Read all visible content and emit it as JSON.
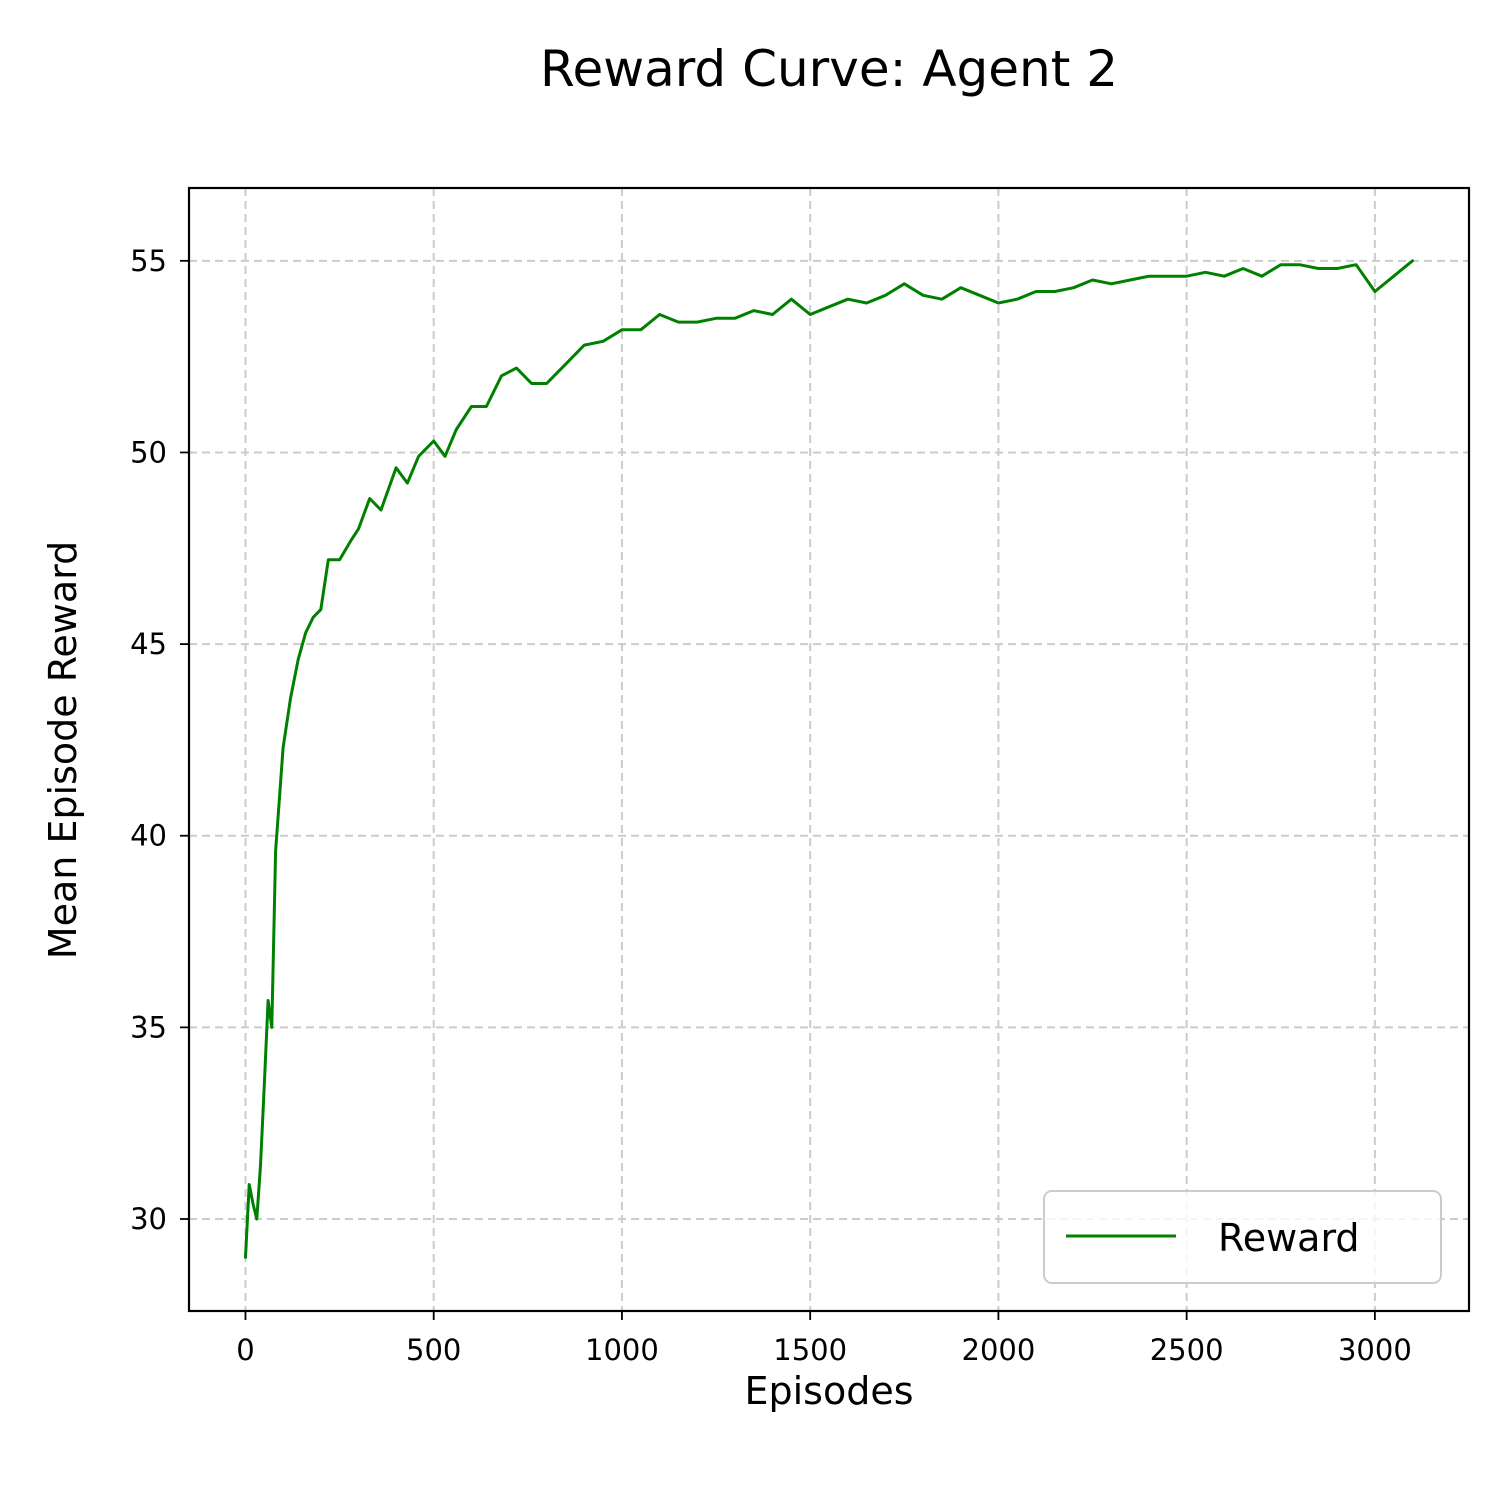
{
  "chart_data": {
    "type": "line",
    "title": "Reward Curve: Agent 2",
    "xlabel": "Episodes",
    "ylabel": "Mean Episode Reward",
    "xlim": [
      -150,
      3250
    ],
    "ylim": [
      27.6,
      56.9
    ],
    "xticks": [
      0,
      500,
      1000,
      1500,
      2000,
      2500,
      3000
    ],
    "yticks": [
      30,
      35,
      40,
      45,
      50,
      55
    ],
    "xtick_labels": [
      "0",
      "500",
      "1000",
      "1500",
      "2000",
      "2500",
      "3000"
    ],
    "ytick_labels": [
      "30",
      "35",
      "40",
      "45",
      "50",
      "55"
    ],
    "grid": true,
    "legend_position": "lower-right",
    "series": [
      {
        "name": "Reward",
        "color": "#008000",
        "x": [
          0,
          10,
          20,
          30,
          40,
          50,
          60,
          70,
          80,
          100,
          120,
          140,
          160,
          180,
          200,
          220,
          250,
          280,
          300,
          330,
          360,
          400,
          430,
          460,
          500,
          530,
          560,
          600,
          640,
          680,
          720,
          760,
          800,
          850,
          900,
          950,
          1000,
          1050,
          1100,
          1150,
          1200,
          1250,
          1300,
          1350,
          1400,
          1450,
          1500,
          1550,
          1600,
          1650,
          1700,
          1750,
          1800,
          1850,
          1900,
          1950,
          2000,
          2050,
          2100,
          2150,
          2200,
          2250,
          2300,
          2350,
          2400,
          2450,
          2500,
          2550,
          2600,
          2650,
          2700,
          2750,
          2800,
          2850,
          2900,
          2950,
          3000,
          3050,
          3100
        ],
        "y": [
          29.0,
          30.9,
          30.4,
          30.0,
          31.4,
          33.5,
          35.7,
          35.0,
          39.6,
          42.3,
          43.6,
          44.6,
          45.3,
          45.7,
          45.9,
          47.2,
          47.2,
          47.7,
          48.0,
          48.8,
          48.5,
          49.6,
          49.2,
          49.9,
          50.3,
          49.9,
          50.6,
          51.2,
          51.2,
          52.0,
          52.2,
          51.8,
          51.8,
          52.3,
          52.8,
          52.9,
          53.2,
          53.2,
          53.6,
          53.4,
          53.4,
          53.5,
          53.5,
          53.7,
          53.6,
          54.0,
          53.6,
          53.8,
          54.0,
          53.9,
          54.1,
          54.4,
          54.1,
          54.0,
          54.3,
          54.1,
          53.9,
          54.0,
          54.2,
          54.2,
          54.3,
          54.5,
          54.4,
          54.5,
          54.6,
          54.6,
          54.6,
          54.7,
          54.6,
          54.8,
          54.6,
          54.9,
          54.9,
          54.8,
          54.8,
          54.9,
          54.2,
          54.6,
          55.0
        ]
      }
    ]
  }
}
